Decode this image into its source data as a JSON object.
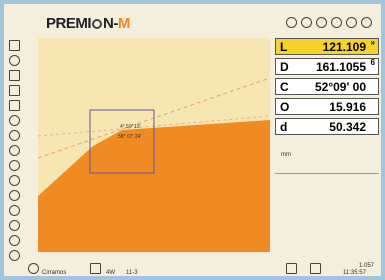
{
  "header": {
    "brand": "PREMI",
    "brand_suffix": "N-",
    "brand_accent": "M"
  },
  "map": {
    "labels": [
      "4° 59' 19'",
      "58° 07' 24'"
    ]
  },
  "readouts": [
    {
      "label": "L",
      "value": "121.109",
      "mark": "»"
    },
    {
      "label": "D",
      "value": "161.1055",
      "mark": "6"
    },
    {
      "label": "C",
      "value": "52°09' 00"
    },
    {
      "label": "O",
      "value": "15.916"
    },
    {
      "label": "d",
      "value": "50.342"
    }
  ],
  "note": "mm",
  "status": {
    "left": "Cirramos",
    "mode": "4W",
    "code": "11-3",
    "version": "1.057",
    "time": "11:35:57"
  }
}
